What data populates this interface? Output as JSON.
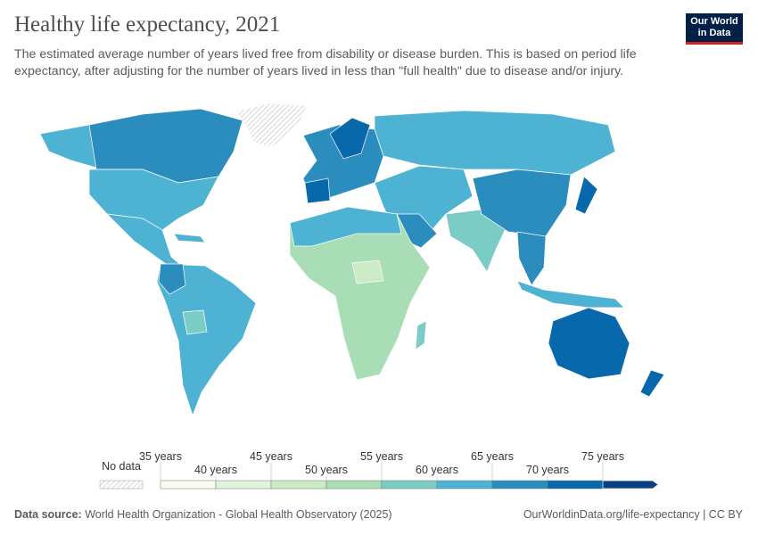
{
  "header": {
    "title": "Healthy life expectancy, 2021",
    "subtitle": "The estimated average number of years lived free from disability or disease burden. This is based on period life expectancy, after adjusting for the number of years lived in less than \"full health\" due to disease and/or injury.",
    "logo": [
      "Our World",
      "in Data"
    ]
  },
  "legend": {
    "no_data": "No data",
    "labels": [
      "35 years",
      "40 years",
      "45 years",
      "50 years",
      "55 years",
      "60 years",
      "65 years",
      "70 years",
      "75 years"
    ],
    "colors": [
      "#f7fcf0",
      "#e0f3db",
      "#ccebc5",
      "#a8ddb5",
      "#7bccc4",
      "#4eb3d3",
      "#2b8cbe",
      "#0868ac",
      "#084081"
    ]
  },
  "footer": {
    "source_label": "Data source:",
    "source": "World Health Organization - Global Health Observatory (2025)",
    "link": "OurWorldinData.org/life-expectancy | CC BY"
  }
}
